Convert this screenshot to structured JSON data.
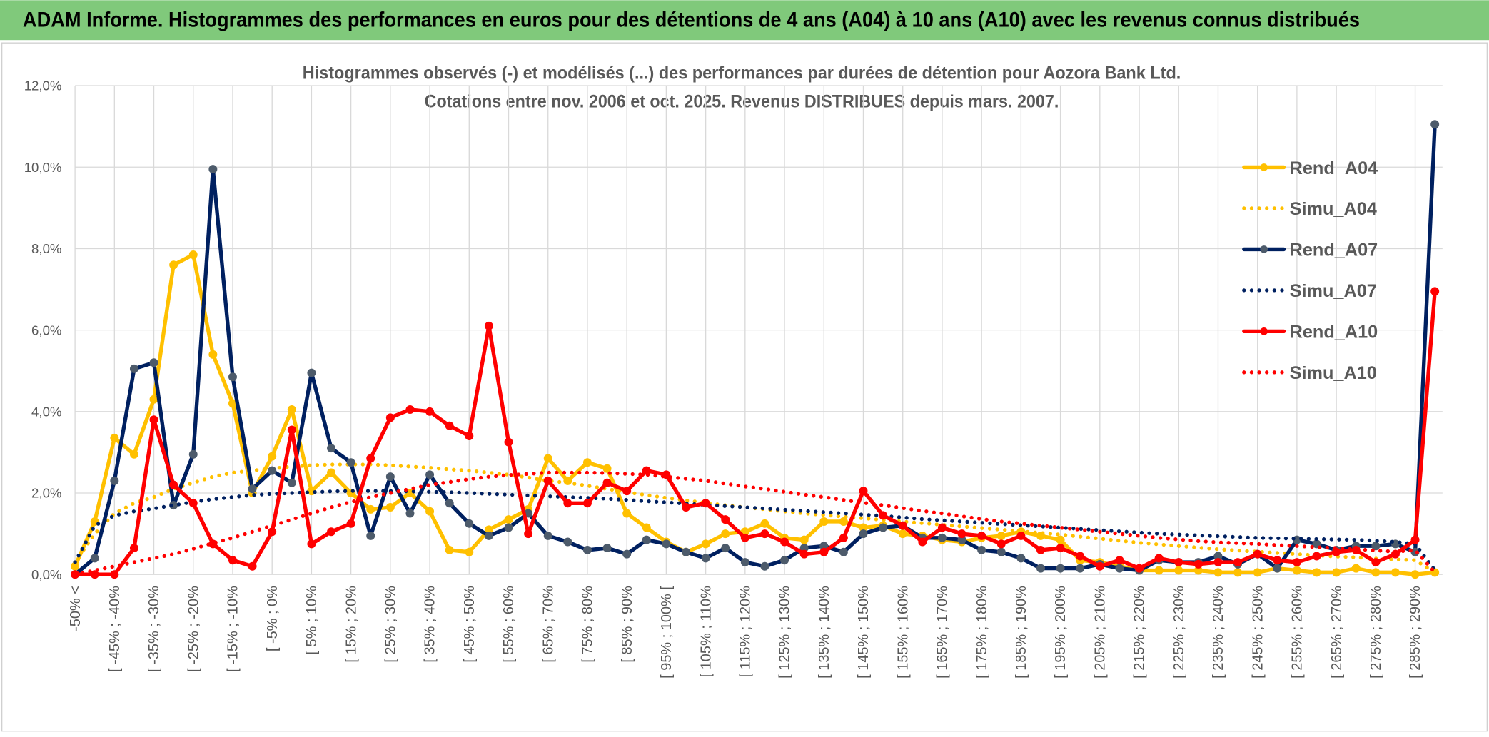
{
  "chart_data": {
    "type": "line",
    "header": "ADAM Informe. Histogrammes des performances en euros pour des détentions de 4 ans (A04) à 10 ans (A10) avec les revenus connus distribués",
    "title": "Histogrammes observés (-) et modélisés (...) des performances par durées de détention pour Aozora Bank Ltd.",
    "subtitle": "Cotations entre nov. 2006 et oct. 2025. Revenus DISTRIBUES depuis mars. 2007.",
    "categories": [
      "-50% <",
      null,
      "[ -45% ; -40%",
      null,
      "[ -35% ; -30%",
      null,
      "[ -25% ; -20%",
      null,
      "[ -15% ; -10%",
      null,
      "[ -5% ; 0%",
      null,
      "[ 5% ; 10%",
      null,
      "[ 15% ; 20%",
      null,
      "[ 25% ; 30%",
      null,
      "[ 35% ; 40%",
      null,
      "[ 45% ; 50%",
      null,
      "[ 55% ; 60%",
      null,
      "[ 65% ; 70%",
      null,
      "[ 75% ; 80%",
      null,
      "[ 85% ; 90%",
      null,
      "[ 95% ; 100% [",
      null,
      "[ 105% ; 110%",
      null,
      "[ 115% ; 120%",
      null,
      "[ 125% ; 130%",
      null,
      "[ 135% ; 140%",
      null,
      "[ 145% ; 150%",
      null,
      "[ 155% ; 160%",
      null,
      "[ 165% ; 170%",
      null,
      "[ 175% ; 180%",
      null,
      "[ 185% ; 190%",
      null,
      "[ 195% ; 200%",
      null,
      "[ 205% ; 210%",
      null,
      "[ 215% ; 220%",
      null,
      "[ 225% ; 230%",
      null,
      "[ 235% ; 240%",
      null,
      "[ 245% ; 250%",
      null,
      "[ 255% ; 260%",
      null,
      "[ 265% ; 270%",
      null,
      "[ 275% ; 280%",
      null,
      "[ 285% ; 290%",
      null
    ],
    "series": [
      {
        "name": "Rend_A04",
        "color": "#ffc000",
        "style": "solid",
        "marker": true,
        "values": [
          0.2,
          1.3,
          3.35,
          2.95,
          4.3,
          7.6,
          7.85,
          5.4,
          4.2,
          2.0,
          2.9,
          4.05,
          2.05,
          2.5,
          2.0,
          1.6,
          1.65,
          2.0,
          1.55,
          0.6,
          0.55,
          1.1,
          1.35,
          1.6,
          2.85,
          2.3,
          2.75,
          2.6,
          1.5,
          1.15,
          0.8,
          0.55,
          0.75,
          1.0,
          1.05,
          1.25,
          0.9,
          0.85,
          1.3,
          1.3,
          1.15,
          1.2,
          1.0,
          0.95,
          0.85,
          0.8,
          0.9,
          0.95,
          1.05,
          0.95,
          0.85,
          0.35,
          0.3,
          0.2,
          0.1,
          0.1,
          0.1,
          0.1,
          0.05,
          0.05,
          0.05,
          0.15,
          0.1,
          0.05,
          0.05,
          0.15,
          0.05,
          0.05,
          0.0,
          0.05
        ]
      },
      {
        "name": "Simu_A04",
        "color": "#ffc000",
        "style": "dotted",
        "marker": false,
        "values": [
          0.3,
          1.0,
          1.5,
          1.75,
          1.9,
          2.1,
          2.25,
          2.4,
          2.5,
          2.55,
          2.6,
          2.65,
          2.68,
          2.7,
          2.7,
          2.7,
          2.68,
          2.65,
          2.62,
          2.58,
          2.55,
          2.5,
          2.45,
          2.38,
          2.3,
          2.25,
          2.18,
          2.1,
          2.02,
          1.95,
          1.88,
          1.82,
          1.76,
          1.7,
          1.65,
          1.6,
          1.55,
          1.5,
          1.46,
          1.42,
          1.38,
          1.34,
          1.3,
          1.26,
          1.22,
          1.18,
          1.14,
          1.1,
          1.06,
          1.02,
          0.98,
          0.93,
          0.88,
          0.83,
          0.78,
          0.74,
          0.7,
          0.66,
          0.62,
          0.59,
          0.56,
          0.53,
          0.5,
          0.47,
          0.44,
          0.42,
          0.39,
          0.37,
          0.35,
          0.05
        ]
      },
      {
        "name": "Rend_A07",
        "color": "#002060",
        "marker_color": "#4d5b6b",
        "style": "solid",
        "marker": true,
        "values": [
          0.0,
          0.4,
          2.3,
          5.05,
          5.2,
          1.7,
          2.95,
          9.95,
          4.85,
          2.1,
          2.55,
          2.25,
          4.95,
          3.1,
          2.75,
          0.95,
          2.4,
          1.5,
          2.45,
          1.75,
          1.25,
          0.95,
          1.15,
          1.5,
          0.95,
          0.8,
          0.6,
          0.65,
          0.5,
          0.85,
          0.75,
          0.55,
          0.4,
          0.65,
          0.3,
          0.2,
          0.35,
          0.65,
          0.7,
          0.55,
          1.0,
          1.15,
          1.2,
          0.9,
          0.9,
          0.85,
          0.6,
          0.55,
          0.4,
          0.15,
          0.15,
          0.15,
          0.25,
          0.15,
          0.1,
          0.35,
          0.3,
          0.3,
          0.45,
          0.25,
          0.5,
          0.15,
          0.85,
          0.75,
          0.6,
          0.7,
          0.7,
          0.75,
          0.55,
          11.05
        ]
      },
      {
        "name": "Simu_A07",
        "color": "#002060",
        "style": "dotted",
        "marker": false,
        "values": [
          0.3,
          1.2,
          1.45,
          1.55,
          1.62,
          1.7,
          1.78,
          1.85,
          1.9,
          1.95,
          1.98,
          2.0,
          2.02,
          2.04,
          2.05,
          2.05,
          2.05,
          2.04,
          2.03,
          2.02,
          2.0,
          1.98,
          1.96,
          1.94,
          1.92,
          1.9,
          1.88,
          1.86,
          1.83,
          1.8,
          1.77,
          1.74,
          1.71,
          1.68,
          1.65,
          1.62,
          1.59,
          1.56,
          1.53,
          1.5,
          1.47,
          1.44,
          1.4,
          1.36,
          1.33,
          1.3,
          1.27,
          1.24,
          1.21,
          1.18,
          1.15,
          1.12,
          1.09,
          1.06,
          1.03,
          1.0,
          0.98,
          0.96,
          0.94,
          0.92,
          0.9,
          0.89,
          0.88,
          0.87,
          0.86,
          0.85,
          0.83,
          0.8,
          0.75,
          0.1
        ]
      },
      {
        "name": "Rend_A10",
        "color": "#ff0000",
        "style": "solid",
        "marker": true,
        "values": [
          0.0,
          0.0,
          0.0,
          0.65,
          3.8,
          2.2,
          1.75,
          0.75,
          0.35,
          0.2,
          1.05,
          3.55,
          0.75,
          1.05,
          1.25,
          2.85,
          3.85,
          4.05,
          4.0,
          3.65,
          3.4,
          6.1,
          3.25,
          1.0,
          2.3,
          1.75,
          1.75,
          2.25,
          2.05,
          2.55,
          2.45,
          1.65,
          1.75,
          1.35,
          0.9,
          1.0,
          0.8,
          0.5,
          0.55,
          0.9,
          2.05,
          1.45,
          1.2,
          0.8,
          1.15,
          1.0,
          0.95,
          0.75,
          0.95,
          0.6,
          0.65,
          0.45,
          0.2,
          0.35,
          0.15,
          0.4,
          0.3,
          0.25,
          0.3,
          0.3,
          0.5,
          0.35,
          0.3,
          0.45,
          0.55,
          0.6,
          0.3,
          0.5,
          0.85,
          6.95
        ]
      },
      {
        "name": "Simu_A10",
        "color": "#ff0000",
        "style": "dotted",
        "marker": false,
        "values": [
          0.0,
          0.1,
          0.2,
          0.3,
          0.4,
          0.5,
          0.63,
          0.77,
          0.9,
          1.05,
          1.2,
          1.35,
          1.5,
          1.65,
          1.78,
          1.9,
          2.0,
          2.1,
          2.2,
          2.27,
          2.34,
          2.4,
          2.44,
          2.47,
          2.5,
          2.5,
          2.5,
          2.49,
          2.47,
          2.45,
          2.4,
          2.35,
          2.3,
          2.23,
          2.16,
          2.1,
          2.03,
          1.96,
          1.9,
          1.83,
          1.76,
          1.7,
          1.63,
          1.56,
          1.5,
          1.43,
          1.36,
          1.3,
          1.25,
          1.2,
          1.15,
          1.1,
          1.05,
          1.0,
          0.95,
          0.9,
          0.86,
          0.82,
          0.79,
          0.77,
          0.75,
          0.72,
          0.7,
          0.67,
          0.65,
          0.62,
          0.59,
          0.56,
          0.6,
          0.05
        ]
      }
    ],
    "ylim": [
      0,
      12
    ],
    "yticks": [
      {
        "value": 0,
        "label": "0,0%"
      },
      {
        "value": 2,
        "label": "2,0%"
      },
      {
        "value": 4,
        "label": "4,0%"
      },
      {
        "value": 6,
        "label": "6,0%"
      },
      {
        "value": 8,
        "label": "8,0%"
      },
      {
        "value": 10,
        "label": "10,0%"
      },
      {
        "value": 12,
        "label": "12,0%"
      }
    ],
    "grid": true,
    "legend": "right"
  }
}
